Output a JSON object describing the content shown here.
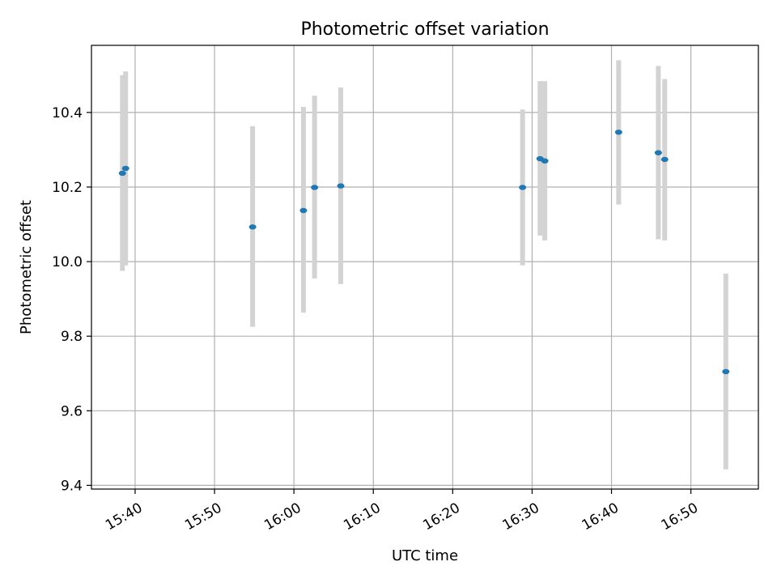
{
  "chart_data": {
    "type": "scatter",
    "title": "Photometric offset variation",
    "xlabel": "UTC time",
    "ylabel": "Photometric offset",
    "grid": true,
    "xlim": [
      "15:34:30",
      "16:58:30"
    ],
    "ylim": [
      9.39,
      10.58
    ],
    "xticks": [
      "15:40",
      "15:50",
      "16:00",
      "16:10",
      "16:20",
      "16:30",
      "16:40",
      "16:50"
    ],
    "yticks": [
      9.4,
      9.6,
      9.8,
      10.0,
      10.2,
      10.4
    ],
    "colors": {
      "point": "#1f77b4",
      "errorbar": "#d3d3d3",
      "grid": "#b0b0b0",
      "axes": "#000000"
    },
    "points": [
      {
        "x": "15:38:24",
        "y": 10.237,
        "yerr_low": 9.975,
        "yerr_high": 10.5
      },
      {
        "x": "15:38:48",
        "y": 10.25,
        "yerr_low": 9.99,
        "yerr_high": 10.51
      },
      {
        "x": "15:54:48",
        "y": 10.093,
        "yerr_low": 9.825,
        "yerr_high": 10.363
      },
      {
        "x": "16:01:12",
        "y": 10.137,
        "yerr_low": 9.863,
        "yerr_high": 10.415
      },
      {
        "x": "16:02:36",
        "y": 10.199,
        "yerr_low": 9.955,
        "yerr_high": 10.445
      },
      {
        "x": "16:05:54",
        "y": 10.203,
        "yerr_low": 9.94,
        "yerr_high": 10.467
      },
      {
        "x": "16:28:48",
        "y": 10.199,
        "yerr_low": 9.99,
        "yerr_high": 10.408
      },
      {
        "x": "16:31:00",
        "y": 10.276,
        "yerr_low": 10.07,
        "yerr_high": 10.484
      },
      {
        "x": "16:31:36",
        "y": 10.27,
        "yerr_low": 10.057,
        "yerr_high": 10.484
      },
      {
        "x": "16:40:54",
        "y": 10.347,
        "yerr_low": 10.153,
        "yerr_high": 10.54
      },
      {
        "x": "16:45:54",
        "y": 10.292,
        "yerr_low": 10.06,
        "yerr_high": 10.525
      },
      {
        "x": "16:46:42",
        "y": 10.274,
        "yerr_low": 10.057,
        "yerr_high": 10.49
      },
      {
        "x": "16:54:24",
        "y": 9.705,
        "yerr_low": 9.443,
        "yerr_high": 9.968
      }
    ]
  }
}
